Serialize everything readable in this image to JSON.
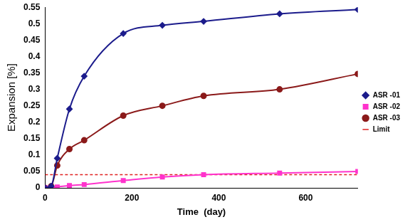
{
  "chart_data": {
    "type": "line",
    "x_label": "Time  (day)",
    "y_label": "Expansion [%]",
    "x": [
      0,
      14,
      28,
      56,
      90,
      180,
      270,
      365,
      540,
      720
    ],
    "series": [
      {
        "name": "ASR -01",
        "color": "#1c1c8c",
        "marker": "diamond",
        "line_style": "solid",
        "values": [
          0,
          0.005,
          0.09,
          0.24,
          0.34,
          0.47,
          0.495,
          0.507,
          0.53,
          0.543
        ]
      },
      {
        "name": "ASR -02",
        "color": "#ff33cc",
        "marker": "square",
        "line_style": "solid",
        "values": [
          0,
          0,
          0.003,
          0.007,
          0.01,
          0.022,
          0.033,
          0.04,
          0.045,
          0.05
        ]
      },
      {
        "name": "ASR -03",
        "color": "#8b1a1a",
        "marker": "circle",
        "line_style": "solid",
        "values": [
          0,
          0.005,
          0.068,
          0.118,
          0.145,
          0.22,
          0.25,
          0.28,
          0.3,
          0.347
        ]
      },
      {
        "name": "Limit",
        "color": "#e02020",
        "marker": "none",
        "line_style": "dashed",
        "values": [
          0.04,
          0.04,
          0.04,
          0.04,
          0.04,
          0.04,
          0.04,
          0.04,
          0.04,
          0.04
        ]
      }
    ],
    "xlim": [
      0,
      720
    ],
    "xticks": [
      0,
      200,
      400,
      600
    ],
    "ylim": [
      0,
      0.55
    ],
    "yticks": [
      0,
      0.05,
      0.1,
      0.15,
      0.2,
      0.25,
      0.3,
      0.35,
      0.4,
      0.45,
      0.5,
      0.55
    ],
    "grid": false,
    "legend": "right"
  }
}
